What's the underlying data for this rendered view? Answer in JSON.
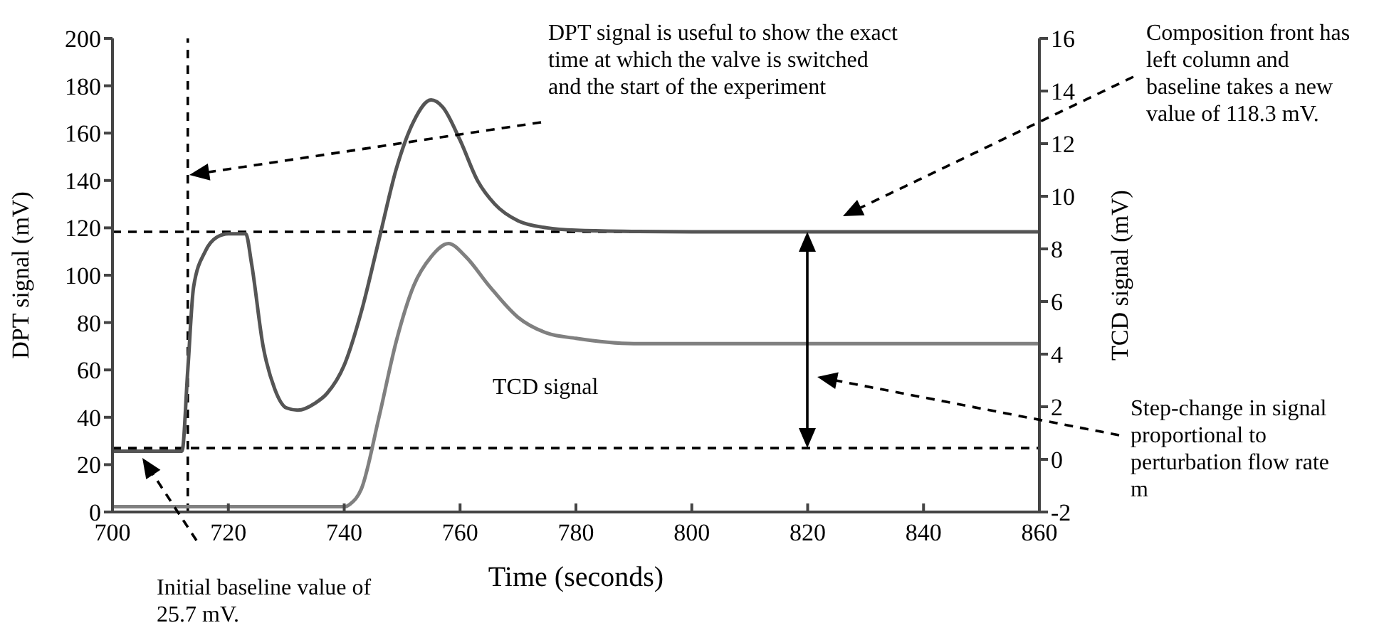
{
  "chart_data": {
    "type": "line",
    "xlabel": "Time (seconds)",
    "ylabel": "DPT signal (mV)",
    "y2label": "TCD signal (mV)",
    "xlim": [
      700,
      860
    ],
    "xticks": [
      700,
      720,
      740,
      760,
      780,
      800,
      820,
      840,
      860
    ],
    "ylim": [
      0,
      200
    ],
    "yticks": [
      0,
      20,
      40,
      60,
      80,
      100,
      120,
      140,
      160,
      180,
      200
    ],
    "y2lim": [
      -2,
      16
    ],
    "y2ticks": [
      -2,
      0,
      2,
      4,
      6,
      8,
      10,
      12,
      14,
      16
    ],
    "marker": "none",
    "line_style": "solid",
    "series": [
      {
        "color": "#555555",
        "x": [
          700,
          712,
          713,
          714,
          716,
          718,
          720,
          723,
          724,
          726,
          728,
          730,
          732,
          735,
          737,
          740,
          743,
          746,
          749,
          752,
          755,
          757,
          760,
          763,
          766,
          770,
          775,
          780,
          790,
          800,
          860
        ],
        "values": [
          25.7,
          25.7,
          60,
          95,
          110,
          116,
          117.5,
          117.5,
          105,
          70,
          52,
          44,
          43,
          46,
          50,
          62,
          85,
          115,
          145,
          165,
          174,
          171,
          157,
          140,
          130,
          123,
          120,
          119,
          118.5,
          118.3,
          118.3
        ]
      },
      {
        "color": "#808080",
        "axis": "y2",
        "x": [
          700,
          740,
          741,
          743,
          746,
          749,
          752,
          755,
          758,
          761,
          765,
          770,
          775,
          780,
          790,
          800,
          860
        ],
        "values": [
          -1.8,
          -1.8,
          -1.7,
          -1.1,
          1.6,
          4.5,
          6.6,
          7.7,
          8.2,
          7.7,
          6.6,
          5.4,
          4.8,
          4.6,
          4.4,
          4.4,
          4.4
        ]
      }
    ],
    "ref_lines": [
      {
        "axis": "y",
        "value": 118.3,
        "line_style": "dashed",
        "color": "#000000"
      },
      {
        "axis": "y",
        "value": 27,
        "line_style": "dashed",
        "color": "#000000"
      },
      {
        "axis": "x",
        "value": 713,
        "line_style": "dashed",
        "color": "#000000"
      }
    ],
    "annotations": [
      "DPT signal is useful to show the exact time at which the valve is switched and the start of the experiment",
      "Initial baseline value of 25.7 mV.",
      "Composition front has left column and baseline takes a new value of 118.3 mV.",
      "Step-change in signal proportional to perturbation flow rate m",
      "TCD signal"
    ]
  }
}
